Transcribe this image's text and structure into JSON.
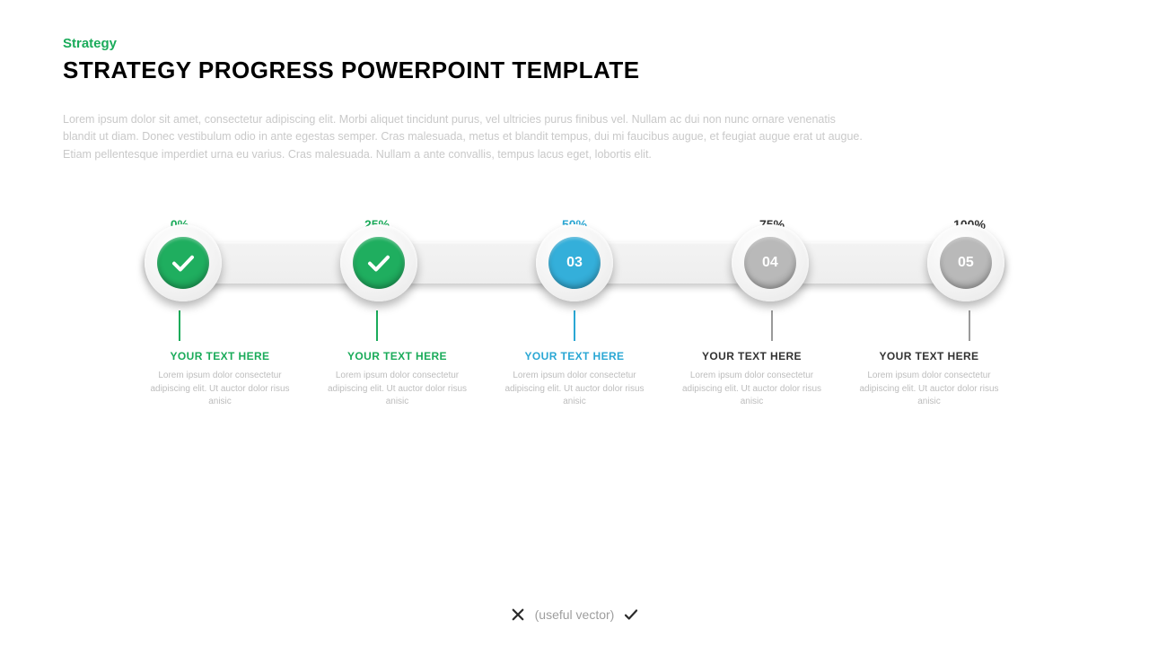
{
  "colors": {
    "category": "#1aab5a",
    "title": "#000000",
    "intro": "#c9c9c9",
    "caption_body": "#bdbdbd",
    "footer_text": "#9e9e9e",
    "footer_icon": "#2b2b2b"
  },
  "category": "Strategy",
  "title": "STRATEGY PROGRESS POWERPOINT TEMPLATE",
  "intro": "Lorem ipsum dolor sit amet, consectetur adipiscing elit. Morbi aliquet tincidunt purus, vel ultricies purus finibus vel. Nullam ac dui non nunc ornare venenatis blandit ut diam. Donec vestibulum odio in ante egestas semper. Cras malesuada, metus et blandit tempus, dui mi faucibus augue, et feugiat augue erat ut augue. Etiam pellentesque imperdiet urna eu varius. Cras malesuada. Nullam a ante convallis, tempus lacus eget, lobortis elit.",
  "timeline": {
    "track_bg": "#efefef",
    "node_outer_bg": "#f4f4f4",
    "steps": [
      {
        "percent": "0%",
        "percent_color": "#1aab5a",
        "fill": "#1fae5f",
        "type": "check",
        "label": "",
        "connector": "#1aab5a",
        "caption_color": "#1aab5a",
        "caption": "YOUR TEXT HERE"
      },
      {
        "percent": "25%",
        "percent_color": "#1aab5a",
        "fill": "#1fae5f",
        "type": "check",
        "label": "",
        "connector": "#1aab5a",
        "caption_color": "#1aab5a",
        "caption": "YOUR TEXT HERE"
      },
      {
        "percent": "50%",
        "percent_color": "#2aa7d4",
        "fill": "#34afda",
        "type": "number",
        "label": "03",
        "connector": "#2aa7d4",
        "caption_color": "#2aa7d4",
        "caption": "YOUR TEXT HERE"
      },
      {
        "percent": "75%",
        "percent_color": "#333333",
        "fill": "#b9b9b9",
        "type": "number",
        "label": "04",
        "connector": "#9a9a9a",
        "caption_color": "#333333",
        "caption": "YOUR TEXT HERE"
      },
      {
        "percent": "100%",
        "percent_color": "#333333",
        "fill": "#b9b9b9",
        "type": "number",
        "label": "05",
        "connector": "#9a9a9a",
        "caption_color": "#333333",
        "caption": "YOUR TEXT HERE"
      }
    ],
    "caption_body": "Lorem ipsum dolor consectetur adipiscing elit. Ut auctor dolor risus anisic"
  },
  "footer": {
    "text": "(useful vector)"
  }
}
